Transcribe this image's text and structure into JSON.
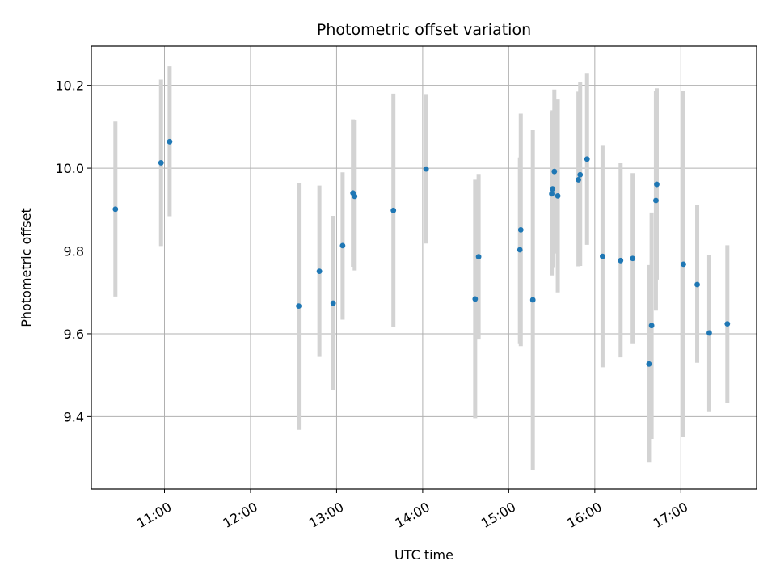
{
  "chart_data": {
    "type": "scatter",
    "title": "Photometric offset variation",
    "xlabel": "UTC time",
    "ylabel": "Photometric offset",
    "x_ticks": [
      "11:00",
      "12:00",
      "13:00",
      "14:00",
      "15:00",
      "16:00",
      "17:00"
    ],
    "x_tick_hours": [
      11,
      12,
      13,
      14,
      15,
      16,
      17
    ],
    "xlim": [
      10.15,
      17.88
    ],
    "y_ticks": [
      "9.4",
      "9.6",
      "9.8",
      "10.0",
      "10.2"
    ],
    "y_tick_values": [
      9.4,
      9.6,
      9.8,
      10.0,
      10.2
    ],
    "ylim": [
      9.225,
      10.295
    ],
    "grid": true,
    "error_bar_color": "#d3d3d3",
    "point_color": "#1f77b4",
    "points": [
      {
        "x": 10.43,
        "y": 9.901,
        "lo": 9.69,
        "hi": 10.113
      },
      {
        "x": 10.96,
        "y": 10.013,
        "lo": 9.812,
        "hi": 10.214
      },
      {
        "x": 11.06,
        "y": 10.064,
        "lo": 9.884,
        "hi": 10.246
      },
      {
        "x": 12.56,
        "y": 9.667,
        "lo": 9.368,
        "hi": 9.965
      },
      {
        "x": 12.8,
        "y": 9.751,
        "lo": 9.544,
        "hi": 9.958
      },
      {
        "x": 12.96,
        "y": 9.674,
        "lo": 9.465,
        "hi": 9.885
      },
      {
        "x": 13.07,
        "y": 9.813,
        "lo": 9.634,
        "hi": 9.99
      },
      {
        "x": 13.19,
        "y": 9.94,
        "lo": 9.762,
        "hi": 10.118
      },
      {
        "x": 13.21,
        "y": 9.932,
        "lo": 9.753,
        "hi": 10.117
      },
      {
        "x": 13.66,
        "y": 9.898,
        "lo": 9.617,
        "hi": 10.18
      },
      {
        "x": 14.04,
        "y": 9.998,
        "lo": 9.818,
        "hi": 10.179
      },
      {
        "x": 14.61,
        "y": 9.684,
        "lo": 9.396,
        "hi": 9.972
      },
      {
        "x": 14.65,
        "y": 9.786,
        "lo": 9.586,
        "hi": 9.986
      },
      {
        "x": 15.13,
        "y": 9.803,
        "lo": 9.577,
        "hi": 10.026
      },
      {
        "x": 15.14,
        "y": 9.851,
        "lo": 9.57,
        "hi": 10.132
      },
      {
        "x": 15.28,
        "y": 9.682,
        "lo": 9.271,
        "hi": 10.092
      },
      {
        "x": 15.5,
        "y": 9.938,
        "lo": 9.741,
        "hi": 10.135
      },
      {
        "x": 15.51,
        "y": 9.95,
        "lo": 9.761,
        "hi": 10.14
      },
      {
        "x": 15.53,
        "y": 9.992,
        "lo": 9.794,
        "hi": 10.19
      },
      {
        "x": 15.57,
        "y": 9.933,
        "lo": 9.7,
        "hi": 10.166
      },
      {
        "x": 15.81,
        "y": 9.972,
        "lo": 9.763,
        "hi": 10.185
      },
      {
        "x": 15.83,
        "y": 9.984,
        "lo": 9.764,
        "hi": 10.208
      },
      {
        "x": 15.91,
        "y": 10.022,
        "lo": 9.815,
        "hi": 10.23
      },
      {
        "x": 16.09,
        "y": 9.787,
        "lo": 9.519,
        "hi": 10.056
      },
      {
        "x": 16.3,
        "y": 9.777,
        "lo": 9.543,
        "hi": 10.012
      },
      {
        "x": 16.44,
        "y": 9.782,
        "lo": 9.577,
        "hi": 9.988
      },
      {
        "x": 16.63,
        "y": 9.527,
        "lo": 9.289,
        "hi": 9.766
      },
      {
        "x": 16.66,
        "y": 9.62,
        "lo": 9.346,
        "hi": 9.893
      },
      {
        "x": 16.71,
        "y": 9.922,
        "lo": 9.656,
        "hi": 10.187
      },
      {
        "x": 16.72,
        "y": 9.961,
        "lo": 9.731,
        "hi": 10.193
      },
      {
        "x": 17.03,
        "y": 9.768,
        "lo": 9.35,
        "hi": 10.187
      },
      {
        "x": 17.19,
        "y": 9.719,
        "lo": 9.53,
        "hi": 9.911
      },
      {
        "x": 17.33,
        "y": 9.602,
        "lo": 9.411,
        "hi": 9.791
      },
      {
        "x": 17.54,
        "y": 9.624,
        "lo": 9.434,
        "hi": 9.814
      }
    ]
  }
}
